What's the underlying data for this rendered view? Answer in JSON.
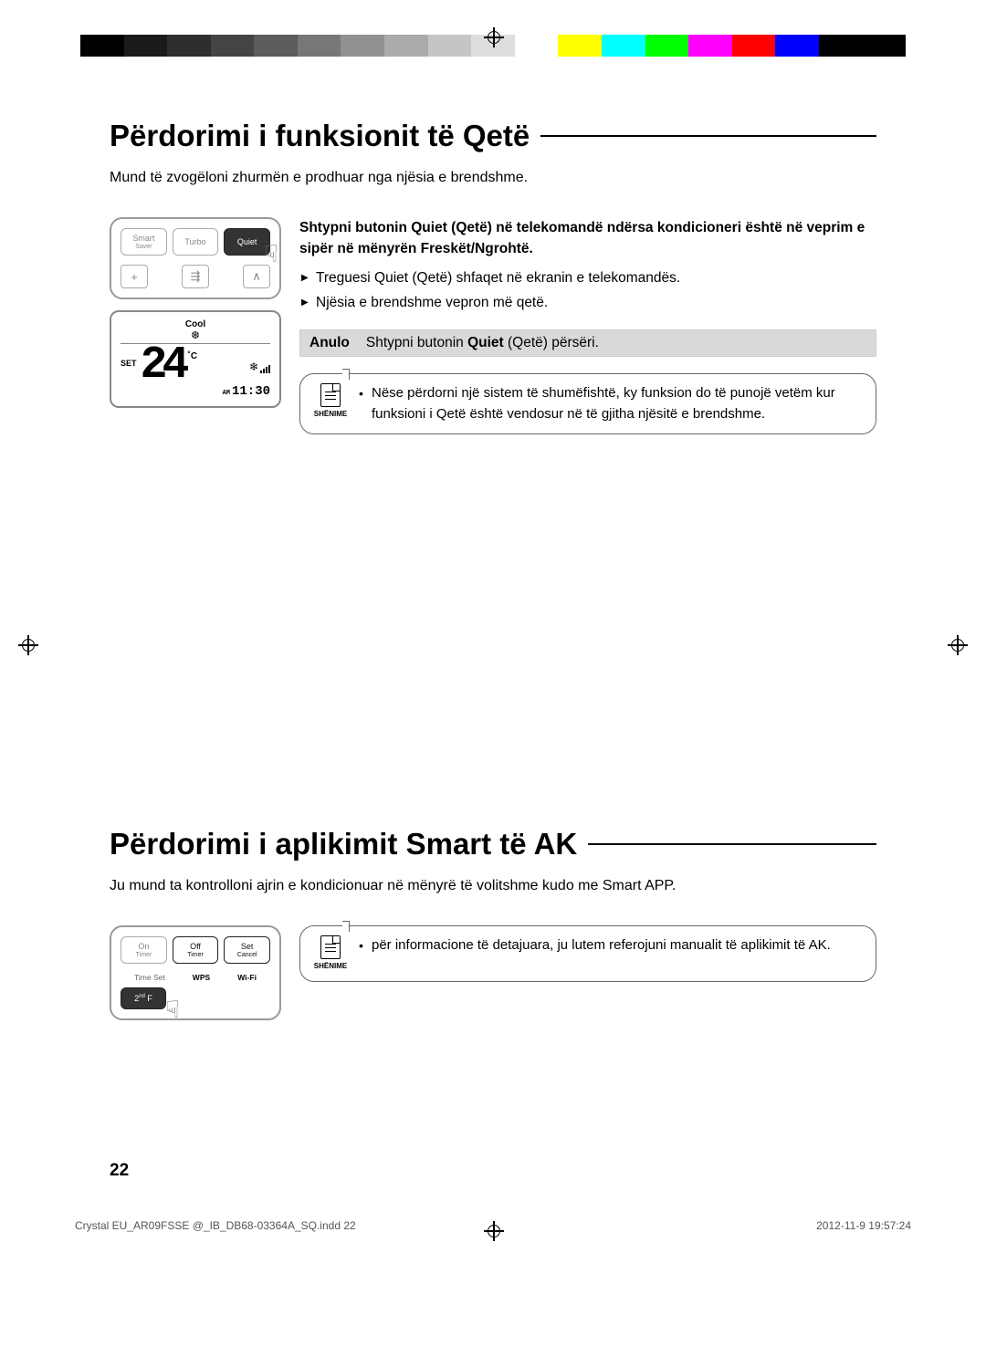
{
  "print_marks": {
    "color_bar": [
      "#000000",
      "#1a1a1a",
      "#2e2e2e",
      "#444444",
      "#5c5c5c",
      "#777777",
      "#919191",
      "#ababab",
      "#c5c5c5",
      "#dedede",
      "#ffffff",
      "#ffff00",
      "#00ffff",
      "#00ff00",
      "#ff00ff",
      "#ff0000",
      "#0000ff",
      "#000000",
      "#000000"
    ]
  },
  "section1": {
    "title": "Përdorimi i funksionit të Qetë",
    "intro": "Mund të zvogëloni zhurmën e prodhuar nga njësia e brendshme.",
    "remote": {
      "buttons": {
        "smart": "Smart",
        "saver": "Saver",
        "turbo": "Turbo",
        "quiet": "Quiet"
      },
      "small_buttons": {
        "plus": "+",
        "swing": "⇶",
        "up": "∧"
      }
    },
    "display": {
      "mode": "Cool",
      "set_label": "SET",
      "temp": "24",
      "unit": "˚C",
      "am": "AM",
      "time": "11:30",
      "fan": "❄"
    },
    "instruction_bold_part1": "Shtypni butonin Quiet",
    "instruction_norm": " (Qetë) në telekomandë ndërsa kondicioneri është në veprim e sipër në mënyrën Freskët/Ngrohtë.",
    "bullets": [
      "Treguesi Quiet (Qetë) shfaqet në ekranin e telekomandës.",
      "Njësia e brendshme vepron më qetë."
    ],
    "anulo": {
      "label": "Anulo",
      "text_pre": "Shtypni butonin ",
      "text_bold": "Quiet",
      "text_post": " (Qetë) përsëri."
    },
    "note": {
      "label": "SHËNIME",
      "text": "Nëse përdorni një sistem të shumëfishtë, ky funksion do të punojë vetëm kur funksioni i Qetë është vendosur në të gjitha njësitë e brendshme."
    }
  },
  "section2": {
    "title": "Përdorimi i aplikimit Smart të AK",
    "intro": "Ju mund ta kontrolloni ajrin e kondicionuar në mënyrë të volitshme kudo me Smart APP.",
    "remote": {
      "buttons": {
        "on": "On",
        "timer": "Timer",
        "off": "Off",
        "set": "Set",
        "cancel": "Cancel",
        "2ndf": "2nd F"
      },
      "labels": {
        "timeset": "Time Set",
        "wps": "WPS",
        "wifi": "Wi-Fi"
      }
    },
    "note": {
      "label": "SHËNIME",
      "text": "për informacione të detajuara, ju lutem referojuni manualit të aplikimit të AK."
    }
  },
  "page_number": "22",
  "footer": {
    "file": "Crystal  EU_AR09FSSE @_IB_DB68-03364A_SQ.indd   22",
    "date": "2012-11-9   19:57:24"
  }
}
